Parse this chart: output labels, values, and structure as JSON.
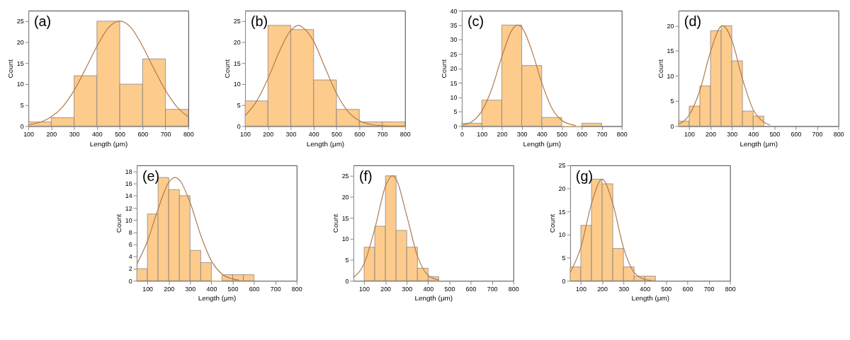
{
  "chart_data": [
    {
      "type": "histogram",
      "annotations": [
        "(a)"
      ],
      "xlabel": "Length (μm)",
      "ylabel": "Count",
      "color": "#fdcb8c",
      "bins": [
        100,
        200,
        300,
        400,
        500,
        600,
        700,
        800
      ],
      "values": [
        1,
        2,
        12,
        25,
        10,
        16,
        4
      ],
      "xlim": [
        100,
        800
      ],
      "ylim": [
        0,
        27.5
      ],
      "xticks": [
        100,
        200,
        300,
        400,
        500,
        600,
        700,
        800
      ],
      "yticks": [
        0,
        5,
        10,
        15,
        20,
        25
      ],
      "series": [
        {
          "type": "line",
          "color": "#b07a50",
          "x": [
            100,
            150,
            200,
            250,
            300,
            350,
            400,
            450,
            500,
            550,
            600,
            650,
            700,
            750,
            800
          ],
          "values": [
            0.3,
            0.9,
            2.2,
            4.6,
            8.5,
            13.6,
            19,
            23.4,
            25,
            23.4,
            19,
            13.6,
            8.5,
            4.6,
            2.2
          ]
        }
      ]
    },
    {
      "type": "histogram",
      "annotations": [
        "(b)"
      ],
      "xlabel": "Length (μm)",
      "ylabel": "Count",
      "color": "#fdcb8c",
      "bins": [
        100,
        200,
        300,
        400,
        500,
        600,
        700,
        800
      ],
      "values": [
        6,
        24,
        23,
        11,
        4,
        1,
        1
      ],
      "xlim": [
        100,
        800
      ],
      "ylim": [
        0,
        27.5
      ],
      "xticks": [
        100,
        200,
        300,
        400,
        500,
        600,
        700,
        800
      ],
      "yticks": [
        0,
        5,
        10,
        15,
        20,
        25
      ],
      "series": [
        {
          "type": "line",
          "color": "#b07a50",
          "x": [
            100,
            150,
            200,
            250,
            300,
            335,
            350,
            400,
            450,
            500,
            550,
            600,
            650,
            700,
            750,
            800
          ],
          "values": [
            2.5,
            5.9,
            11.3,
            17.8,
            22.8,
            24,
            23.6,
            20.2,
            13.9,
            7.8,
            3.5,
            1.3,
            0.4,
            0.1,
            0,
            0
          ]
        }
      ]
    },
    {
      "type": "histogram",
      "annotations": [
        "(c)"
      ],
      "xlabel": "Length (μm)",
      "ylabel": "Count",
      "color": "#fdcb8c",
      "bins": [
        0,
        100,
        200,
        300,
        400,
        500,
        600,
        700
      ],
      "values": [
        1,
        9,
        35,
        21,
        3,
        0,
        1
      ],
      "xlim": [
        0,
        800
      ],
      "ylim": [
        0,
        40
      ],
      "xticks": [
        0,
        100,
        200,
        300,
        400,
        500,
        600,
        700,
        800
      ],
      "yticks": [
        0,
        5,
        10,
        15,
        20,
        25,
        30,
        35,
        40
      ],
      "series": [
        {
          "type": "line",
          "color": "#b07a50",
          "x": [
            0,
            50,
            100,
            150,
            200,
            250,
            280,
            300,
            350,
            400,
            450,
            500,
            550,
            570
          ],
          "values": [
            0.3,
            1.5,
            5.2,
            12.9,
            24,
            33.2,
            35,
            34.2,
            26.2,
            15,
            6.3,
            2,
            0.5,
            0.2
          ]
        }
      ]
    },
    {
      "type": "histogram",
      "annotations": [
        "(d)"
      ],
      "xlabel": "Length (μm)",
      "ylabel": "Count",
      "color": "#fdcb8c",
      "bins": [
        50,
        100,
        150,
        200,
        250,
        300,
        350,
        400,
        450
      ],
      "values": [
        1,
        4,
        8,
        19,
        20,
        13,
        3,
        2
      ],
      "xlim": [
        50,
        800
      ],
      "ylim": [
        0,
        23
      ],
      "xticks": [
        100,
        200,
        300,
        400,
        500,
        600,
        700,
        800
      ],
      "yticks": [
        0,
        5,
        10,
        15,
        20
      ],
      "series": [
        {
          "type": "line",
          "color": "#b07a50",
          "x": [
            50,
            100,
            150,
            200,
            250,
            258,
            300,
            350,
            400,
            450,
            480
          ],
          "values": [
            0.4,
            2.2,
            7.1,
            14.8,
            19.9,
            20,
            17.1,
            9.4,
            3.3,
            0.8,
            0.2
          ]
        }
      ]
    },
    {
      "type": "histogram",
      "annotations": [
        "(e)"
      ],
      "xlabel": "Length (μm)",
      "ylabel": "Count",
      "color": "#fdcb8c",
      "bins": [
        50,
        100,
        150,
        200,
        250,
        300,
        350,
        400,
        450,
        500,
        550,
        600
      ],
      "values": [
        2,
        11,
        17,
        15,
        14,
        5,
        3,
        0,
        1,
        1,
        1
      ],
      "xlim": [
        50,
        800
      ],
      "ylim": [
        0,
        19
      ],
      "xticks": [
        100,
        200,
        300,
        400,
        500,
        600,
        700,
        800
      ],
      "yticks": [
        0,
        2,
        4,
        6,
        8,
        10,
        12,
        14,
        16,
        18
      ],
      "series": [
        {
          "type": "line",
          "color": "#b07a50",
          "x": [
            50,
            100,
            150,
            200,
            230,
            250,
            300,
            350,
            400,
            450,
            500,
            530
          ],
          "values": [
            2.7,
            6.5,
            11.8,
            16.2,
            17,
            16.6,
            12.9,
            7.5,
            3.3,
            1.1,
            0.3,
            0.1
          ]
        }
      ]
    },
    {
      "type": "histogram",
      "annotations": [
        "(f)"
      ],
      "xlabel": "Length (μm)",
      "ylabel": "Count",
      "color": "#fdcb8c",
      "bins": [
        100,
        150,
        200,
        250,
        300,
        350,
        400,
        450
      ],
      "values": [
        8,
        13,
        25,
        12,
        8,
        3,
        1
      ],
      "xlim": [
        50,
        800
      ],
      "ylim": [
        0,
        27.5
      ],
      "xticks": [
        100,
        200,
        300,
        400,
        500,
        600,
        700,
        800
      ],
      "yticks": [
        0,
        5,
        10,
        15,
        20,
        25
      ],
      "series": [
        {
          "type": "line",
          "color": "#b07a50",
          "x": [
            50,
            100,
            150,
            200,
            232,
            250,
            300,
            350,
            400,
            450
          ],
          "values": [
            0.8,
            4.1,
            12.4,
            22.5,
            25,
            24.2,
            15.5,
            5.9,
            1.3,
            0.2
          ]
        }
      ]
    },
    {
      "type": "histogram",
      "annotations": [
        "(g)"
      ],
      "xlabel": "Length (μm)",
      "ylabel": "Count",
      "color": "#fdcb8c",
      "bins": [
        50,
        100,
        150,
        200,
        250,
        300,
        350,
        400,
        450
      ],
      "values": [
        3,
        12,
        22,
        21,
        7,
        3,
        1,
        1
      ],
      "xlim": [
        50,
        800
      ],
      "ylim": [
        0,
        25
      ],
      "xticks": [
        100,
        200,
        300,
        400,
        500,
        600,
        700,
        800
      ],
      "yticks": [
        0,
        5,
        10,
        15,
        20,
        25
      ],
      "series": [
        {
          "type": "line",
          "color": "#b07a50",
          "x": [
            50,
            100,
            150,
            200,
            250,
            300,
            350,
            400,
            430
          ],
          "values": [
            1.8,
            7.2,
            16.7,
            22,
            16.7,
            7.2,
            1.8,
            0.3,
            0.1
          ]
        }
      ]
    }
  ]
}
